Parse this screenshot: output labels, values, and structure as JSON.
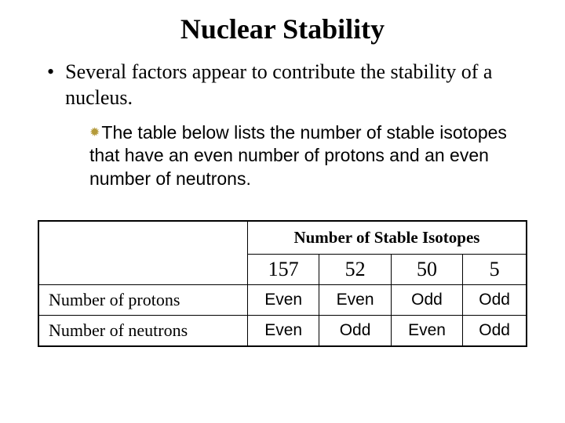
{
  "title": "Nuclear Stability",
  "bullet_main": "Several factors appear to contribute the stability of a nucleus.",
  "bullet_sub": "The table below lists the number of stable isotopes that have an even number of protons and an even number of neutrons.",
  "table": {
    "header": "Number of Stable Isotopes",
    "counts": [
      "157",
      "52",
      "50",
      "5"
    ],
    "rows": [
      {
        "label": "Number of protons",
        "cells": [
          "Even",
          "Even",
          "Odd",
          "Odd"
        ]
      },
      {
        "label": "Number of neutrons",
        "cells": [
          "Even",
          "Odd",
          "Even",
          "Odd"
        ]
      }
    ],
    "border_color": "#000000",
    "background_color": "#ffffff",
    "title_fontsize": 21,
    "count_fontsize": 26,
    "label_fontsize": 22,
    "cell_fontsize": 21
  },
  "colors": {
    "text": "#000000",
    "background": "#ffffff",
    "sub_bullet_marker": "#b49a3a"
  },
  "fonts": {
    "serif": "Times New Roman",
    "sans": "Arial",
    "title_size": 36,
    "body_size": 26,
    "sub_size": 23
  }
}
